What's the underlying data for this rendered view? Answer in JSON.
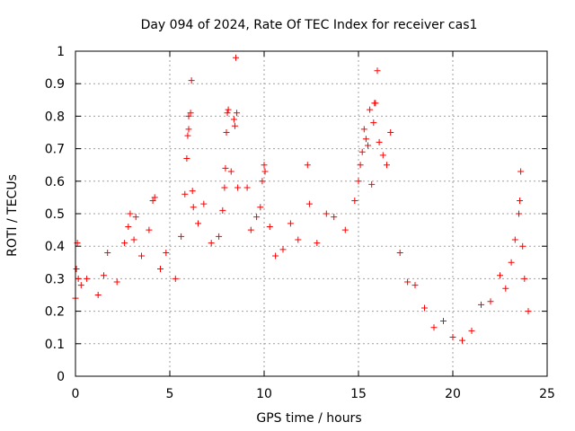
{
  "chart_data": {
    "type": "scatter",
    "title": "Day 094 of 2024, Rate Of TEC Index for receiver cas1",
    "xlabel": "GPS time / hours",
    "ylabel": "ROTI / TECUs",
    "xlim": [
      0,
      25
    ],
    "ylim": [
      0,
      1
    ],
    "xticks": [
      "0",
      "5",
      "10",
      "15",
      "20",
      "25"
    ],
    "yticks": [
      "0",
      "0.1",
      "0.2",
      "0.3",
      "0.4",
      "0.5",
      "0.6",
      "0.7",
      "0.8",
      "0.9",
      "1"
    ],
    "grid": true,
    "marker": "+",
    "color": "#ff0000",
    "series": [
      {
        "points": [
          [
            0.0,
            0.24
          ],
          [
            0.05,
            0.33
          ],
          [
            0.1,
            0.41
          ],
          [
            0.15,
            0.3
          ],
          [
            0.3,
            0.28
          ],
          [
            0.6,
            0.3
          ],
          [
            1.2,
            0.25
          ],
          [
            1.5,
            0.31
          ],
          [
            1.7,
            0.38
          ],
          [
            2.2,
            0.29
          ],
          [
            2.6,
            0.41
          ],
          [
            2.8,
            0.46
          ],
          [
            2.9,
            0.5
          ],
          [
            3.1,
            0.42
          ],
          [
            3.2,
            0.49
          ],
          [
            3.5,
            0.37
          ],
          [
            3.9,
            0.45
          ],
          [
            4.1,
            0.54
          ],
          [
            4.2,
            0.55
          ],
          [
            4.5,
            0.33
          ],
          [
            4.8,
            0.38
          ],
          [
            5.3,
            0.3
          ],
          [
            5.6,
            0.43
          ],
          [
            5.8,
            0.56
          ],
          [
            5.9,
            0.67
          ],
          [
            5.95,
            0.74
          ],
          [
            6.0,
            0.76
          ],
          [
            6.0,
            0.8
          ],
          [
            6.1,
            0.81
          ],
          [
            6.15,
            0.91
          ],
          [
            6.2,
            0.57
          ],
          [
            6.25,
            0.52
          ],
          [
            6.5,
            0.47
          ],
          [
            6.8,
            0.53
          ],
          [
            7.2,
            0.41
          ],
          [
            7.6,
            0.43
          ],
          [
            7.8,
            0.51
          ],
          [
            7.9,
            0.58
          ],
          [
            7.95,
            0.64
          ],
          [
            8.0,
            0.75
          ],
          [
            8.05,
            0.81
          ],
          [
            8.1,
            0.82
          ],
          [
            8.25,
            0.63
          ],
          [
            8.4,
            0.79
          ],
          [
            8.45,
            0.77
          ],
          [
            8.5,
            0.98
          ],
          [
            8.55,
            0.81
          ],
          [
            8.6,
            0.58
          ],
          [
            9.1,
            0.58
          ],
          [
            9.3,
            0.45
          ],
          [
            9.6,
            0.49
          ],
          [
            9.8,
            0.52
          ],
          [
            9.9,
            0.6
          ],
          [
            10.0,
            0.65
          ],
          [
            10.05,
            0.63
          ],
          [
            10.3,
            0.46
          ],
          [
            10.6,
            0.37
          ],
          [
            11.0,
            0.39
          ],
          [
            11.4,
            0.47
          ],
          [
            11.8,
            0.42
          ],
          [
            12.3,
            0.65
          ],
          [
            12.4,
            0.53
          ],
          [
            12.8,
            0.41
          ],
          [
            13.3,
            0.5
          ],
          [
            13.7,
            0.49
          ],
          [
            14.3,
            0.45
          ],
          [
            14.8,
            0.54
          ],
          [
            15.0,
            0.6
          ],
          [
            15.1,
            0.65
          ],
          [
            15.2,
            0.69
          ],
          [
            15.3,
            0.76
          ],
          [
            15.4,
            0.73
          ],
          [
            15.5,
            0.71
          ],
          [
            15.6,
            0.82
          ],
          [
            15.7,
            0.59
          ],
          [
            15.8,
            0.78
          ],
          [
            15.85,
            0.84
          ],
          [
            15.9,
            0.84
          ],
          [
            16.0,
            0.94
          ],
          [
            16.1,
            0.72
          ],
          [
            16.3,
            0.68
          ],
          [
            16.5,
            0.65
          ],
          [
            16.7,
            0.75
          ],
          [
            17.2,
            0.38
          ],
          [
            17.6,
            0.29
          ],
          [
            18.0,
            0.28
          ],
          [
            18.5,
            0.21
          ],
          [
            19.0,
            0.15
          ],
          [
            19.5,
            0.17
          ],
          [
            20.0,
            0.12
          ],
          [
            20.5,
            0.11
          ],
          [
            21.0,
            0.14
          ],
          [
            21.5,
            0.22
          ],
          [
            22.0,
            0.23
          ],
          [
            22.5,
            0.31
          ],
          [
            22.8,
            0.27
          ],
          [
            23.1,
            0.35
          ],
          [
            23.3,
            0.42
          ],
          [
            23.5,
            0.5
          ],
          [
            23.55,
            0.54
          ],
          [
            23.6,
            0.63
          ],
          [
            23.7,
            0.4
          ],
          [
            23.8,
            0.3
          ],
          [
            24.0,
            0.2
          ]
        ]
      }
    ]
  }
}
